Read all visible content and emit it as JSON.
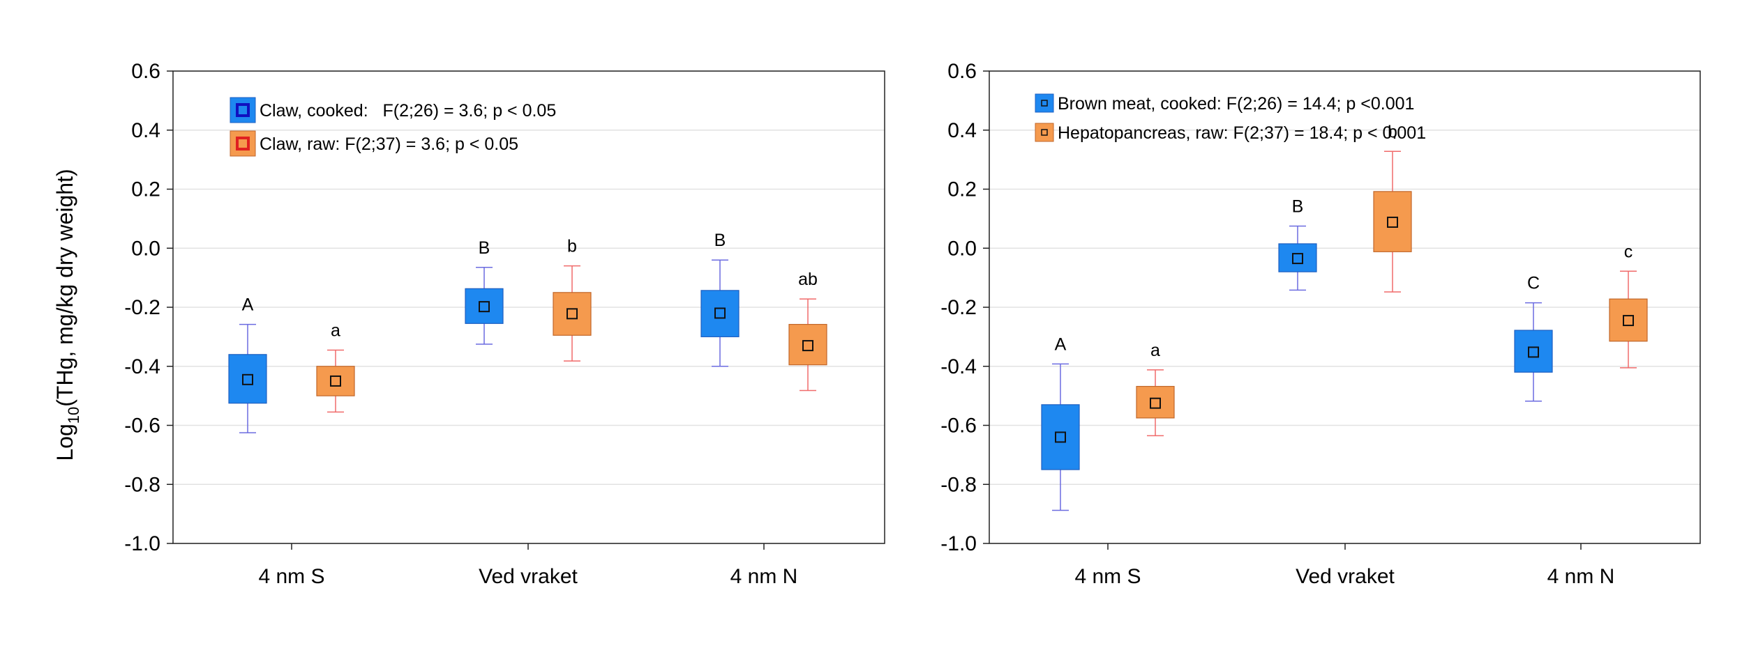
{
  "y_axis_label": {
    "prefix": "Log",
    "sub": "10",
    "suffix": "(THg, mg/kg dry weight)"
  },
  "colors": {
    "blue_fill": "#1E88F0",
    "blue_stroke": "#1F5FC0",
    "blue_whisker": "#6B6BE0",
    "orange_fill": "#F59A4E",
    "orange_stroke": "#C0662A",
    "orange_whisker": "#F06A6A"
  },
  "chart_data": [
    {
      "type": "box",
      "categories": [
        "4 nm S",
        "Ved vraket",
        "4 nm N"
      ],
      "ylim": [
        -1.0,
        0.6
      ],
      "yticks": [
        0.6,
        0.4,
        0.2,
        0.0,
        -0.2,
        -0.4,
        -0.6,
        -0.8,
        -1.0
      ],
      "ytick_labels": [
        "0.6",
        "0.4",
        "0.2",
        "0.0",
        "-0.2",
        "-0.4",
        "-0.6",
        "-0.8",
        "-1.0"
      ],
      "grid": true,
      "legend_position": "top-left",
      "legend_marker": "hollow",
      "series": [
        {
          "name": "Claw, cooked:",
          "stat": "F(2;26) = 3.6; p < 0.05",
          "color": "blue",
          "mean": [
            -0.445,
            -0.198,
            -0.22
          ],
          "q1": [
            -0.525,
            -0.255,
            -0.3
          ],
          "q3": [
            -0.36,
            -0.137,
            -0.143
          ],
          "min": [
            -0.625,
            -0.325,
            -0.4
          ],
          "max": [
            -0.258,
            -0.065,
            -0.04
          ],
          "letters": [
            "A",
            "B",
            "B"
          ]
        },
        {
          "name": "Claw, raw:",
          "stat": "F(2;37) = 3.6; p < 0.05",
          "color": "orange",
          "mean": [
            -0.45,
            -0.222,
            -0.33
          ],
          "q1": [
            -0.5,
            -0.295,
            -0.395
          ],
          "q3": [
            -0.4,
            -0.15,
            -0.258
          ],
          "min": [
            -0.555,
            -0.382,
            -0.482
          ],
          "max": [
            -0.345,
            -0.06,
            -0.172
          ],
          "letters": [
            "a",
            "b",
            "ab"
          ]
        }
      ]
    },
    {
      "type": "box",
      "categories": [
        "4 nm S",
        "Ved vraket",
        "4 nm N"
      ],
      "ylim": [
        -1.0,
        0.6
      ],
      "yticks": [
        0.6,
        0.4,
        0.2,
        0.0,
        -0.2,
        -0.4,
        -0.6,
        -0.8,
        -1.0
      ],
      "ytick_labels": [
        "0.6",
        "0.4",
        "0.2",
        "0.0",
        "-0.2",
        "-0.4",
        "-0.6",
        "-0.8",
        "-1.0"
      ],
      "grid": true,
      "legend_position": "top-left",
      "legend_marker": "small",
      "series": [
        {
          "name": "Brown meat, cooked:",
          "stat": "F(2;26) = 14.4; p <0.001",
          "color": "blue",
          "mean": [
            -0.64,
            -0.035,
            -0.352
          ],
          "q1": [
            -0.75,
            -0.08,
            -0.42
          ],
          "q3": [
            -0.53,
            0.015,
            -0.278
          ],
          "min": [
            -0.888,
            -0.142,
            -0.518
          ],
          "max": [
            -0.392,
            0.075,
            -0.185
          ],
          "letters": [
            "A",
            "B",
            "C"
          ]
        },
        {
          "name": "Hepatopancreas, raw:",
          "stat": "F(2;37) = 18.4; p < 0.001",
          "color": "orange",
          "mean": [
            -0.525,
            0.088,
            -0.245
          ],
          "q1": [
            -0.575,
            -0.012,
            -0.315
          ],
          "q3": [
            -0.468,
            0.192,
            -0.172
          ],
          "min": [
            -0.635,
            -0.148,
            -0.405
          ],
          "max": [
            -0.412,
            0.328,
            -0.078
          ],
          "letters": [
            "a",
            "b",
            "c"
          ]
        }
      ]
    }
  ]
}
